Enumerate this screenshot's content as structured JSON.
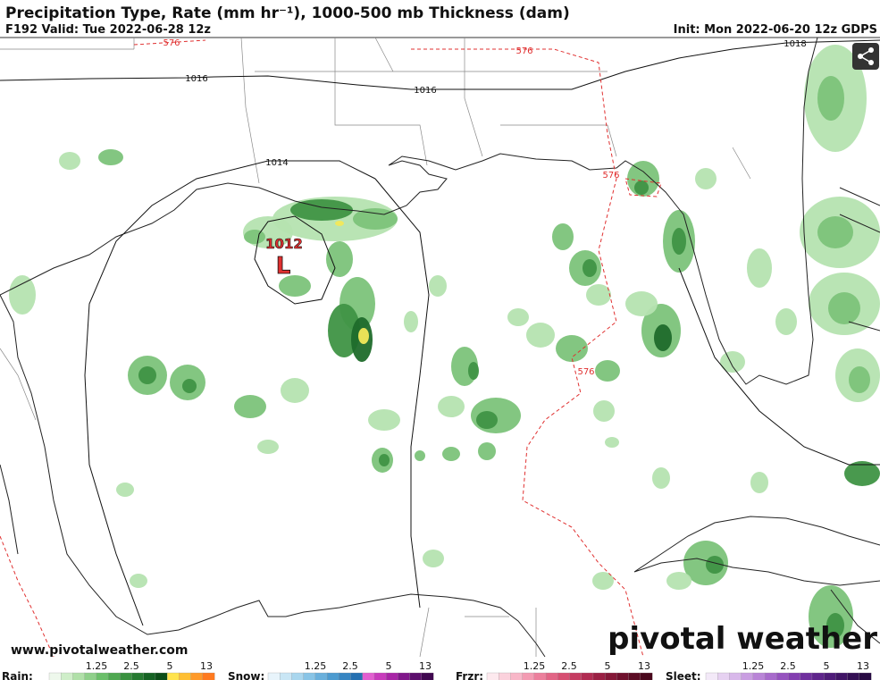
{
  "header": {
    "title": "Precipitation Type, Rate (mm hr⁻¹), 1000-500 mb Thickness (dam)",
    "valid": "F192 Valid: Tue 2022-06-28 12z",
    "init": "Init: Mon 2022-06-20 12z GDPS"
  },
  "map": {
    "isobar_labels": [
      "1016",
      "1016",
      "1014",
      "1018",
      "1012"
    ],
    "low_label": "L",
    "thickness_labels": [
      "576",
      "576",
      "576",
      "576"
    ]
  },
  "footer": {
    "website": "www.pivotalweather.com",
    "logo": "pivotal weather"
  },
  "legend": [
    {
      "label": "Rain:",
      "ticks": [
        "1.25",
        "2.5",
        "5",
        "13"
      ]
    },
    {
      "label": "Snow:",
      "ticks": [
        "1.25",
        "2.5",
        "5",
        "13"
      ]
    },
    {
      "label": "Frzr:",
      "ticks": [
        "1.25",
        "2.5",
        "5",
        "13"
      ]
    },
    {
      "label": "Sleet:",
      "ticks": [
        "1.25",
        "2.5",
        "5",
        "13"
      ]
    }
  ]
}
